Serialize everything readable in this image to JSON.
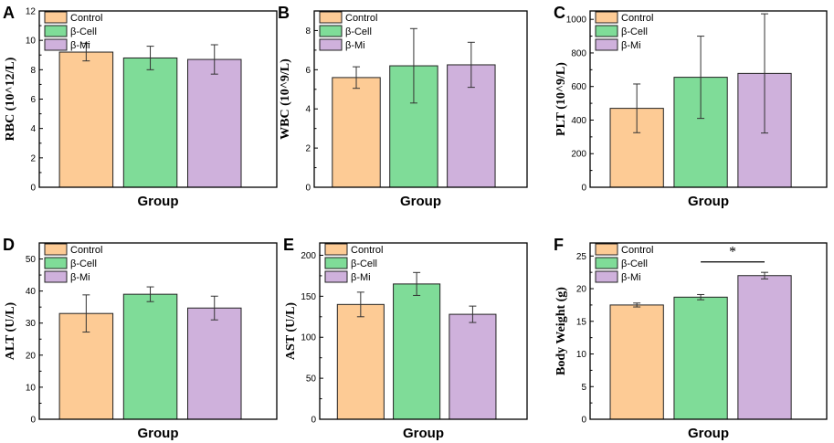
{
  "legend_labels": [
    "Control",
    "β-Cell",
    "β-Mi"
  ],
  "colors": {
    "Control": "#fdcb95",
    "β-Cell": "#7fdc98",
    "β-Mi": "#cfb1dc",
    "axis": "#000000"
  },
  "chart_data": [
    {
      "panel": "A",
      "type": "bar",
      "categories": [
        "Control",
        "β-Cell",
        "β-Mi"
      ],
      "values": [
        9.2,
        8.8,
        8.7
      ],
      "errors": [
        0.6,
        0.8,
        1.0
      ],
      "ylabel": "RBC (10^12/L)",
      "xlabel": "Group",
      "ylim": [
        0,
        12
      ],
      "yticks": [
        0,
        2,
        4,
        6,
        8,
        10,
        12
      ]
    },
    {
      "panel": "B",
      "type": "bar",
      "categories": [
        "Control",
        "β-Cell",
        "β-Mi"
      ],
      "values": [
        5.6,
        6.2,
        6.25
      ],
      "errors": [
        0.55,
        1.9,
        1.15
      ],
      "ylabel": "WBC (10^9/L)",
      "xlabel": "Group",
      "ylim": [
        0,
        9
      ],
      "yticks": [
        0,
        2,
        4,
        6,
        8
      ]
    },
    {
      "panel": "C",
      "type": "bar",
      "categories": [
        "Control",
        "β-Cell",
        "β-Mi"
      ],
      "values": [
        470,
        655,
        678
      ],
      "errors": [
        145,
        245,
        355
      ],
      "ylabel": "PLT (10^9/L)",
      "xlabel": "Group",
      "ylim": [
        0,
        1050
      ],
      "yticks": [
        0,
        200,
        400,
        600,
        800,
        1000
      ]
    },
    {
      "panel": "D",
      "type": "bar",
      "categories": [
        "Control",
        "β-Cell",
        "β-Mi"
      ],
      "values": [
        33,
        39,
        34.7
      ],
      "errors": [
        5.8,
        2.3,
        3.7
      ],
      "ylabel": "ALT (U/L)",
      "xlabel": "Group",
      "ylim": [
        0,
        55
      ],
      "yticks": [
        0,
        10,
        20,
        30,
        40,
        50
      ]
    },
    {
      "panel": "E",
      "type": "bar",
      "categories": [
        "Control",
        "β-Cell",
        "β-Mi"
      ],
      "values": [
        140,
        165,
        128
      ],
      "errors": [
        15,
        14,
        10
      ],
      "ylabel": "AST (U/L)",
      "xlabel": "Group",
      "ylim": [
        0,
        215
      ],
      "yticks": [
        0,
        50,
        100,
        150,
        200
      ]
    },
    {
      "panel": "F",
      "type": "bar",
      "categories": [
        "Control",
        "β-Cell",
        "β-Mi"
      ],
      "values": [
        17.5,
        18.7,
        22.0
      ],
      "errors": [
        0.3,
        0.4,
        0.5
      ],
      "ylabel": "Body Weight (g)",
      "xlabel": "Group",
      "ylim": [
        0,
        27
      ],
      "yticks": [
        0,
        5,
        10,
        15,
        20,
        25
      ],
      "significance": {
        "between": [
          "β-Cell",
          "β-Mi"
        ],
        "label": "*",
        "level": 24.1
      }
    }
  ]
}
